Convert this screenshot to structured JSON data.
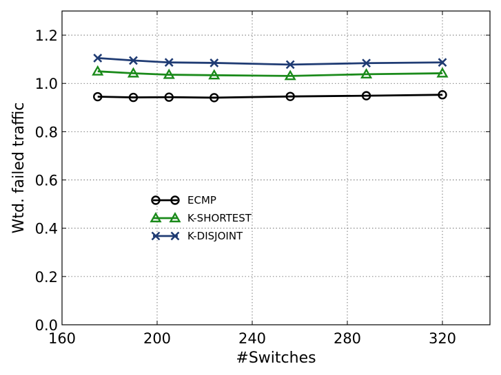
{
  "chart_data": {
    "type": "line",
    "xlabel": "#Switches",
    "ylabel": "Wtd. failed traffic",
    "xlim": [
      160,
      340
    ],
    "ylim": [
      0.0,
      1.3
    ],
    "xticks": [
      160,
      200,
      240,
      280,
      320
    ],
    "xtick_labels": [
      "160",
      "200",
      "240",
      "280",
      "320"
    ],
    "yticks": [
      0.0,
      0.2,
      0.4,
      0.6,
      0.8,
      1.0,
      1.2
    ],
    "ytick_labels": [
      "0.0",
      "0.2",
      "0.4",
      "0.6",
      "0.8",
      "1.0",
      "1.2"
    ],
    "grid": true,
    "legend_position": "center-left",
    "x": [
      175,
      190,
      205,
      224,
      256,
      288,
      320
    ],
    "series": [
      {
        "name": "ECMP",
        "color": "#000000",
        "marker": "circle",
        "values": [
          0.945,
          0.942,
          0.943,
          0.941,
          0.946,
          0.949,
          0.953
        ]
      },
      {
        "name": "K-SHORTEST",
        "color": "#1a8a1a",
        "marker": "triangle",
        "values": [
          1.05,
          1.042,
          1.036,
          1.034,
          1.031,
          1.038,
          1.042
        ]
      },
      {
        "name": "K-DISJOINT",
        "color": "#1f3b73",
        "marker": "x",
        "values": [
          1.105,
          1.095,
          1.087,
          1.085,
          1.078,
          1.084,
          1.087
        ]
      }
    ]
  }
}
